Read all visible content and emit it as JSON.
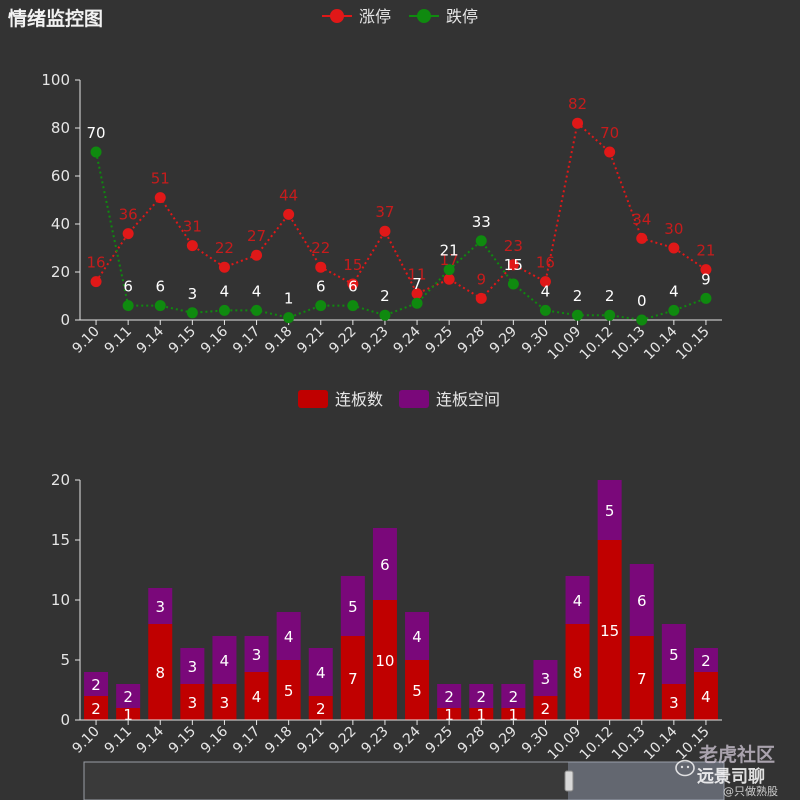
{
  "title": "情绪监控图",
  "colors": {
    "red": "#e01818",
    "green": "#0f8a0f",
    "board": "#c00000",
    "space": "#7a087a",
    "axis": "#e6e6e6",
    "background": "#333333"
  },
  "chart_data": [
    {
      "type": "line",
      "categories": [
        "9.10",
        "9.11",
        "9.14",
        "9.15",
        "9.16",
        "9.17",
        "9.18",
        "9.21",
        "9.22",
        "9.23",
        "9.24",
        "9.25",
        "9.28",
        "9.29",
        "9.30",
        "10.09",
        "10.12",
        "10.13",
        "10.14",
        "10.15"
      ],
      "series": [
        {
          "name": "涨停",
          "values": [
            16,
            36,
            51,
            31,
            22,
            27,
            44,
            22,
            15,
            37,
            11,
            17,
            9,
            23,
            16,
            82,
            70,
            34,
            30,
            21
          ]
        },
        {
          "name": "跌停",
          "values": [
            70,
            6,
            6,
            3,
            4,
            4,
            1,
            6,
            6,
            2,
            7,
            21,
            33,
            15,
            4,
            2,
            2,
            0,
            4,
            9
          ]
        }
      ],
      "ylim": [
        0,
        100
      ],
      "yticks": [
        0,
        20,
        40,
        60,
        80,
        100
      ],
      "legend": "top-center",
      "grid": false
    },
    {
      "type": "bar",
      "stacked": true,
      "categories": [
        "9.10",
        "9.11",
        "9.14",
        "9.15",
        "9.16",
        "9.17",
        "9.18",
        "9.21",
        "9.22",
        "9.23",
        "9.24",
        "9.25",
        "9.28",
        "9.29",
        "9.30",
        "10.09",
        "10.12",
        "10.13",
        "10.14",
        "10.15"
      ],
      "series": [
        {
          "name": "连板数",
          "values": [
            2,
            1,
            8,
            3,
            3,
            4,
            5,
            2,
            7,
            10,
            5,
            1,
            1,
            1,
            2,
            8,
            15,
            7,
            3,
            4
          ]
        },
        {
          "name": "连板空间",
          "values": [
            2,
            2,
            3,
            3,
            4,
            3,
            4,
            4,
            5,
            6,
            4,
            2,
            2,
            2,
            3,
            4,
            5,
            6,
            5,
            2
          ]
        }
      ],
      "ylim": [
        0,
        20
      ],
      "yticks": [
        0,
        5,
        10,
        15,
        20
      ],
      "legend": "top-center",
      "grid": false
    }
  ],
  "watermark": {
    "line1": "老虎社区",
    "line2": "远景司聊",
    "line3": "@只做熟股"
  }
}
